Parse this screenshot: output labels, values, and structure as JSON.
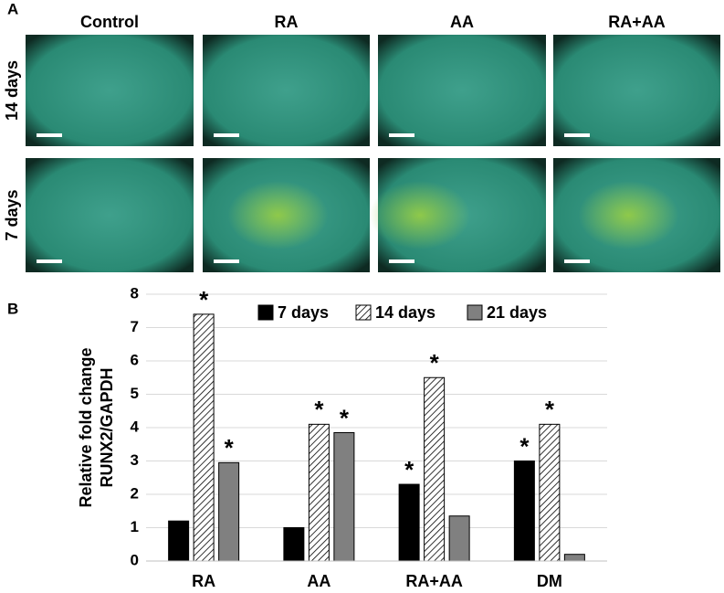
{
  "panel_a": {
    "label": "A",
    "columns": [
      "Control",
      "RA",
      "AA",
      "RA+AA"
    ],
    "rows": [
      "14 days",
      "7 days"
    ]
  },
  "panel_b": {
    "label": "B"
  },
  "chart_data": {
    "type": "bar",
    "ylabel": [
      "Relative fold change",
      "RUNX2/GAPDH"
    ],
    "categories": [
      "RA",
      "AA",
      "RA+AA",
      "DM"
    ],
    "series": [
      {
        "name": "7 days",
        "color": "#000000",
        "values": [
          1.2,
          1.0,
          2.3,
          3.0
        ]
      },
      {
        "name": "14 days",
        "color": "#ffffff",
        "pattern": "hatch",
        "values": [
          7.4,
          4.1,
          5.5,
          4.1
        ]
      },
      {
        "name": "21 days",
        "color": "#808080",
        "values": [
          2.95,
          3.85,
          1.35,
          0.2
        ]
      }
    ],
    "annotations": [
      {
        "text": "*",
        "series": 1,
        "category": 0
      },
      {
        "text": "*",
        "series": 2,
        "category": 0
      },
      {
        "text": "*",
        "series": 1,
        "category": 1
      },
      {
        "text": "*",
        "series": 2,
        "category": 1
      },
      {
        "text": "*",
        "series": 0,
        "category": 2
      },
      {
        "text": "*",
        "series": 1,
        "category": 2
      },
      {
        "text": "*",
        "series": 0,
        "category": 3
      },
      {
        "text": "*",
        "series": 1,
        "category": 3
      }
    ],
    "ylim": [
      0,
      8
    ],
    "yticks": [
      0,
      1,
      2,
      3,
      4,
      5,
      6,
      7,
      8
    ],
    "grid": true,
    "legend": "top"
  }
}
